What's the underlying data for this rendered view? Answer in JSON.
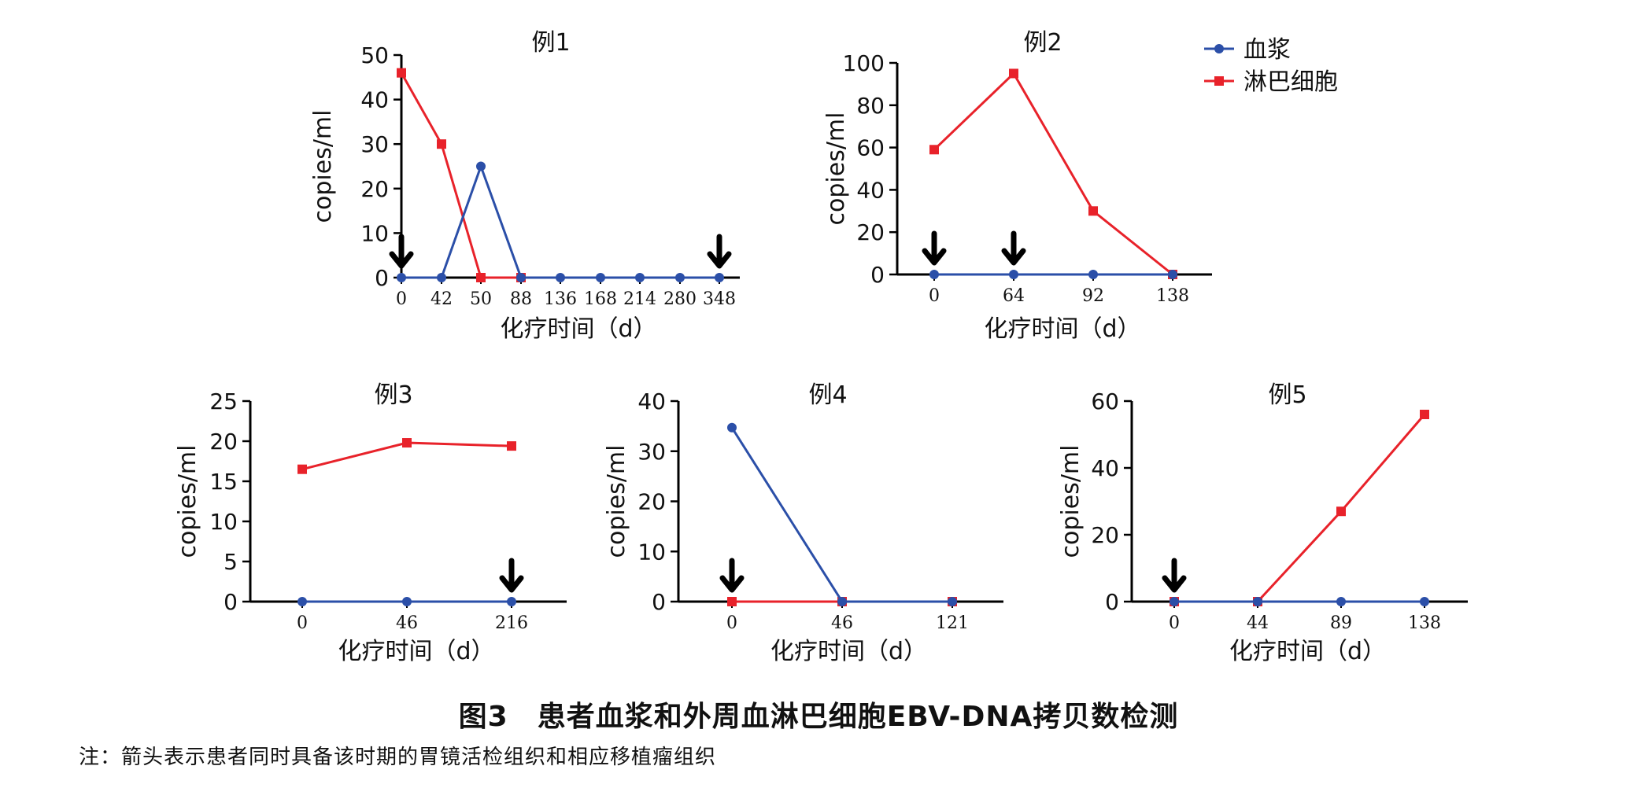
{
  "colors": {
    "plasma": "#2b4fa8",
    "lymph": "#e8222a",
    "axis": "#000000"
  },
  "legend": {
    "plasma_label": "血浆",
    "lymph_label": "淋巴细胞"
  },
  "chart_data": [
    {
      "type": "line",
      "title": "例1",
      "xlabel": "化疗时间（d）",
      "ylabel": "copies/ml",
      "categories": [
        "0",
        "42",
        "50",
        "88",
        "136",
        "168",
        "214",
        "280",
        "348"
      ],
      "ylim": [
        0,
        50
      ],
      "yticks": [
        0,
        10,
        20,
        30,
        40,
        50
      ],
      "series": [
        {
          "name": "血浆",
          "values": [
            0,
            0,
            25,
            0,
            0,
            0,
            0,
            0,
            0
          ]
        },
        {
          "name": "淋巴细胞",
          "values": [
            46,
            30,
            0,
            0,
            null,
            null,
            null,
            null,
            null
          ]
        }
      ],
      "arrows": [
        "0",
        "348"
      ]
    },
    {
      "type": "line",
      "title": "例2",
      "xlabel": "化疗时间（d）",
      "ylabel": "copies/ml",
      "categories": [
        "0",
        "64",
        "92",
        "138"
      ],
      "ylim": [
        0,
        100
      ],
      "yticks": [
        0,
        20,
        40,
        60,
        80,
        100
      ],
      "series": [
        {
          "name": "血浆",
          "values": [
            0,
            0,
            0,
            0
          ]
        },
        {
          "name": "淋巴细胞",
          "values": [
            59,
            95,
            30,
            0
          ]
        }
      ],
      "arrows": [
        "0",
        "64"
      ]
    },
    {
      "type": "line",
      "title": "例3",
      "xlabel": "化疗时间（d）",
      "ylabel": "copies/ml",
      "categories": [
        "0",
        "46",
        "216"
      ],
      "ylim": [
        0,
        25
      ],
      "yticks": [
        0,
        5,
        10,
        15,
        20,
        25
      ],
      "series": [
        {
          "name": "血浆",
          "values": [
            0,
            0,
            0
          ]
        },
        {
          "name": "淋巴细胞",
          "values": [
            16.5,
            19.8,
            19.4
          ]
        }
      ],
      "arrows": [
        "216"
      ]
    },
    {
      "type": "line",
      "title": "例4",
      "xlabel": "化疗时间（d）",
      "ylabel": "copies/ml",
      "categories": [
        "0",
        "46",
        "121"
      ],
      "ylim": [
        0,
        40
      ],
      "yticks": [
        0,
        10,
        20,
        30,
        40
      ],
      "series": [
        {
          "name": "血浆",
          "values": [
            34.7,
            0,
            0
          ]
        },
        {
          "name": "淋巴细胞",
          "values": [
            0,
            0,
            0
          ]
        }
      ],
      "arrows": [
        "0"
      ]
    },
    {
      "type": "line",
      "title": "例5",
      "xlabel": "化疗时间（d）",
      "ylabel": "copies/ml",
      "categories": [
        "0",
        "44",
        "89",
        "138"
      ],
      "ylim": [
        0,
        60
      ],
      "yticks": [
        0,
        20,
        40,
        60
      ],
      "series": [
        {
          "name": "血浆",
          "values": [
            0,
            0,
            0,
            0
          ]
        },
        {
          "name": "淋巴细胞",
          "values": [
            0,
            0,
            27,
            56
          ]
        }
      ],
      "arrows": [
        "0"
      ]
    }
  ],
  "caption": "图3　患者血浆和外周血淋巴细胞EBV-DNA拷贝数检测",
  "note": "注：箭头表示患者同时具备该时期的胃镜活检组织和相应移植瘤组织"
}
